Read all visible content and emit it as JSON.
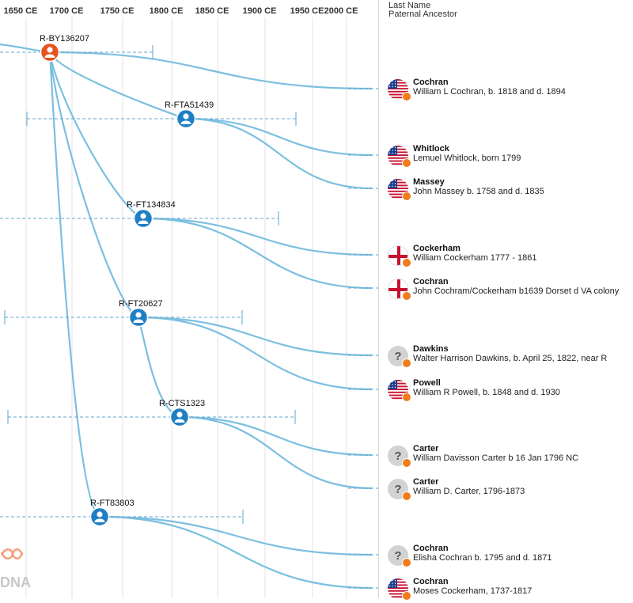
{
  "timeline": {
    "ticks": [
      "1650 CE",
      "1700 CE",
      "1750 CE",
      "1800 CE",
      "1850 CE",
      "1900 CE",
      "1950 CE",
      "2000 CE"
    ]
  },
  "panel": {
    "header_line1": "Last Name",
    "header_line2": "Paternal Ancestor"
  },
  "nodes": [
    {
      "id": "R-BY136207",
      "color": "#e8521f"
    },
    {
      "id": "R-FTA51439",
      "color": "#1f7fc4"
    },
    {
      "id": "R-FT134834",
      "color": "#1f7fc4"
    },
    {
      "id": "R-FT20627",
      "color": "#1f7fc4"
    },
    {
      "id": "R-CTS1323",
      "color": "#1f7fc4"
    },
    {
      "id": "R-FT83803",
      "color": "#1f7fc4"
    }
  ],
  "lineages": [
    {
      "surname": "Cochran",
      "ancestor": "William L Cochran, b. 1818 and d. 1894",
      "flag": "us-flag-icon"
    },
    {
      "surname": "Whitlock",
      "ancestor": "Lemuel Whitlock, born 1799",
      "flag": "us-flag-icon"
    },
    {
      "surname": "Massey",
      "ancestor": "John Massey b. 1758 and d. 1835",
      "flag": "us-flag-icon"
    },
    {
      "surname": "Cockerham",
      "ancestor": "William Cockerham 1777 - 1861",
      "flag": "england-flag-icon"
    },
    {
      "surname": "Cochran",
      "ancestor": "John Cochram/Cockerham b1639 Dorset d VA colony",
      "flag": "england-flag-icon"
    },
    {
      "surname": "Dawkins",
      "ancestor": "Walter Harrison Dawkins, b. April 25, 1822, near R",
      "flag": "unknown-origin-icon"
    },
    {
      "surname": "Powell",
      "ancestor": "William R Powell, b. 1848 and d. 1930",
      "flag": "us-flag-icon"
    },
    {
      "surname": "Carter",
      "ancestor": "William Davisson Carter b 16 Jan 1796 NC",
      "flag": "unknown-origin-icon"
    },
    {
      "surname": "Carter",
      "ancestor": "William D. Carter, 1796-1873",
      "flag": "unknown-origin-icon"
    },
    {
      "surname": "Cochran",
      "ancestor": "Elisha Cochran b. 1795 and d. 1871",
      "flag": "unknown-origin-icon"
    },
    {
      "surname": "Cochran",
      "ancestor": "Moses Cockerham, 1737-1817",
      "flag": "us-flag-icon"
    }
  ],
  "colors": {
    "branch": "#7cbfe0",
    "node_blue": "#1f7fc4",
    "node_root": "#e8521f",
    "badge": "#f07c1b",
    "grid": "#e3e3e3",
    "range": "#5fa6cc"
  },
  "watermark": {
    "text": "DNA"
  }
}
